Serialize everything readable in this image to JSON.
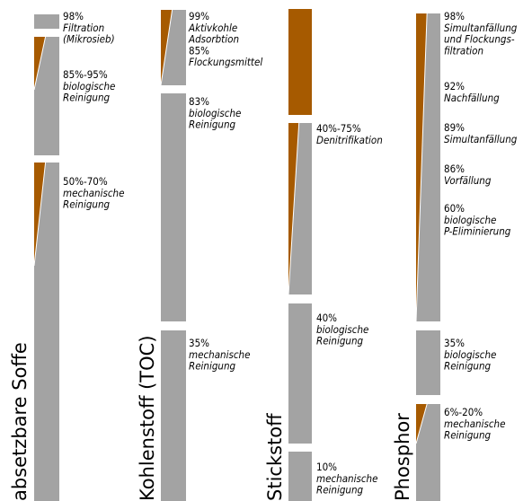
{
  "colors": {
    "gray": "#a3a3a3",
    "brown": "#a65a00",
    "background": "#ffffff"
  },
  "groups": [
    {
      "title": "absetzbare Soffe",
      "stages": [
        {
          "lines": [
            {
              "t": "98%",
              "s": "n"
            },
            {
              "t": "Filtration",
              "s": "i"
            },
            {
              "t": "(Mikrosieb)",
              "s": "i"
            }
          ]
        },
        {
          "lines": [
            {
              "t": "85%-95%",
              "s": "n"
            },
            {
              "t": "biologische",
              "s": "i"
            },
            {
              "t": "Reinigung",
              "s": "i"
            }
          ]
        },
        {
          "lines": [
            {
              "t": "50%-70%",
              "s": "n"
            },
            {
              "t": "mechanische",
              "s": "i"
            },
            {
              "t": "Reinigung",
              "s": "i"
            }
          ]
        }
      ]
    },
    {
      "title": "Kohlenstoff (TOC)",
      "stages": [
        {
          "lines": [
            {
              "t": "99%",
              "s": "n"
            },
            {
              "t": "Aktivkohle",
              "s": "i"
            },
            {
              "t": "Adsorbtion",
              "s": "i"
            },
            {
              "t": "85%",
              "s": "n"
            },
            {
              "t": "Flockungsmittel",
              "s": "i"
            }
          ]
        },
        {
          "lines": [
            {
              "t": "83%",
              "s": "n"
            },
            {
              "t": "biologische",
              "s": "i"
            },
            {
              "t": "Reinigung",
              "s": "i"
            }
          ]
        },
        {
          "lines": [
            {
              "t": "35%",
              "s": "n"
            },
            {
              "t": "mechanische",
              "s": "i"
            },
            {
              "t": "Reinigung",
              "s": "i"
            }
          ]
        }
      ]
    },
    {
      "title": "Stickstoff",
      "stages": [
        {
          "lines": [
            {
              "t": "40%-75%",
              "s": "n"
            },
            {
              "t": "Denitrifikation",
              "s": "i"
            }
          ]
        },
        {
          "lines": [
            {
              "t": "40%",
              "s": "n"
            },
            {
              "t": "biologische",
              "s": "i"
            },
            {
              "t": "Reinigung",
              "s": "i"
            }
          ]
        },
        {
          "lines": [
            {
              "t": "10%",
              "s": "n"
            },
            {
              "t": "mechanische",
              "s": "i"
            },
            {
              "t": "Reinigung",
              "s": "i"
            }
          ]
        }
      ]
    },
    {
      "title": "Phosphor",
      "stages": [
        {
          "lines": [
            {
              "t": "98%",
              "s": "n"
            },
            {
              "t": "Simultanfällung",
              "s": "i"
            },
            {
              "t": "und Flockungs-",
              "s": "i"
            },
            {
              "t": "filtration",
              "s": "i"
            }
          ]
        },
        {
          "lines": [
            {
              "t": "92%",
              "s": "n"
            },
            {
              "t": "Nachfällung",
              "s": "i"
            }
          ]
        },
        {
          "lines": [
            {
              "t": "89%",
              "s": "n"
            },
            {
              "t": "Simultanfällung",
              "s": "i"
            }
          ]
        },
        {
          "lines": [
            {
              "t": "86%",
              "s": "n"
            },
            {
              "t": "Vorfällung",
              "s": "i"
            }
          ]
        },
        {
          "lines": [
            {
              "t": "60%",
              "s": "n"
            },
            {
              "t": "biologische",
              "s": "i"
            },
            {
              "t": "P-Eliminierung",
              "s": "i"
            }
          ]
        },
        {
          "lines": [
            {
              "t": "35%",
              "s": "n"
            },
            {
              "t": "biologische",
              "s": "i"
            },
            {
              "t": "Reinigung",
              "s": "i"
            }
          ]
        },
        {
          "lines": [
            {
              "t": "6%-20%",
              "s": "n"
            },
            {
              "t": "mechanische",
              "s": "i"
            },
            {
              "t": "Reinigung",
              "s": "i"
            }
          ]
        }
      ]
    }
  ]
}
